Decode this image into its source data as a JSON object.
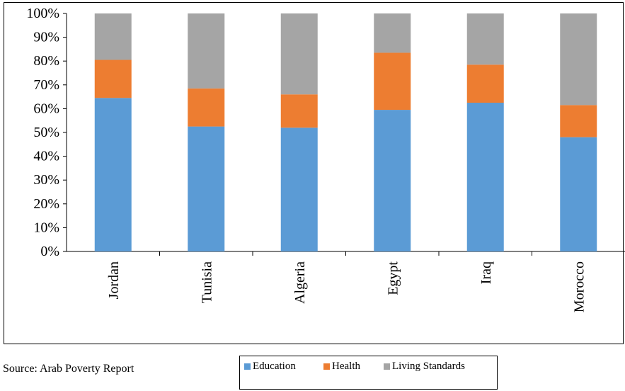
{
  "chart_data": {
    "type": "bar",
    "stacked": true,
    "categories": [
      "Jordan",
      "Tunisia",
      "Algeria",
      "Egypt",
      "Iraq",
      "Morocco"
    ],
    "series": [
      {
        "name": "Education",
        "color": "#5B9BD5",
        "values": [
          64.5,
          52.5,
          52,
          59.5,
          62.5,
          48
        ]
      },
      {
        "name": "Health",
        "color": "#ED7D31",
        "values": [
          16,
          16,
          14,
          24,
          16,
          13.5
        ]
      },
      {
        "name": "Living Standards",
        "color": "#A5A5A5",
        "values": [
          19.5,
          31.5,
          34,
          16.5,
          21.5,
          38.5
        ]
      }
    ],
    "yticks": [
      "0%",
      "10%",
      "20%",
      "30%",
      "40%",
      "50%",
      "60%",
      "70%",
      "80%",
      "90%",
      "100%"
    ],
    "ylim": [
      0,
      100
    ],
    "grid": false,
    "legend_position": "bottom"
  },
  "source": "Source: Arab Poverty Report"
}
